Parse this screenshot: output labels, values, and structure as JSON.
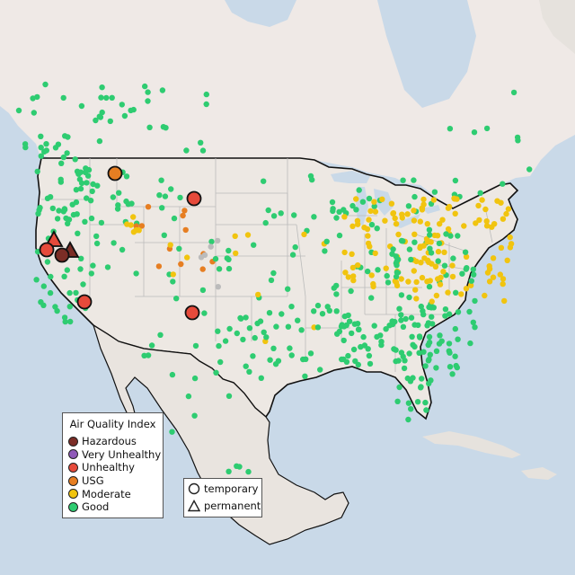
{
  "map": {
    "basemap": "shaded relief, North America",
    "colors": {
      "water": "#c9d9e8",
      "land_main": "#ede8e3",
      "land_other": "#e6e2dd",
      "canada": "#efe9e6",
      "mexico": "#e9e4df",
      "state_border": "#bbbbbb",
      "country_border": "#111111"
    }
  },
  "categories": [
    {
      "key": "hazardous",
      "label": "Hazardous",
      "color": "#7b2d26"
    },
    {
      "key": "very_unhealthy",
      "label": "Very Unhealthy",
      "color": "#8f59b8"
    },
    {
      "key": "unhealthy",
      "label": "Unhealthy",
      "color": "#e64a3b"
    },
    {
      "key": "usg",
      "label": "USG",
      "color": "#e67e22"
    },
    {
      "key": "moderate",
      "label": "Moderate",
      "color": "#f1c40f"
    },
    {
      "key": "good",
      "label": "Good",
      "color": "#2ecc71"
    }
  ],
  "legend": {
    "title": "Air Quality Index",
    "monitor_types": [
      {
        "shape": "circle-icon",
        "label": "temporary"
      },
      {
        "shape": "triangle-icon",
        "label": "permanent"
      }
    ]
  },
  "monitor_count_note": "",
  "station_density": {
    "good_east": 260,
    "moderate_midwest": 150,
    "good_west": 180
  },
  "no_data_color": "#bbbbbb"
}
